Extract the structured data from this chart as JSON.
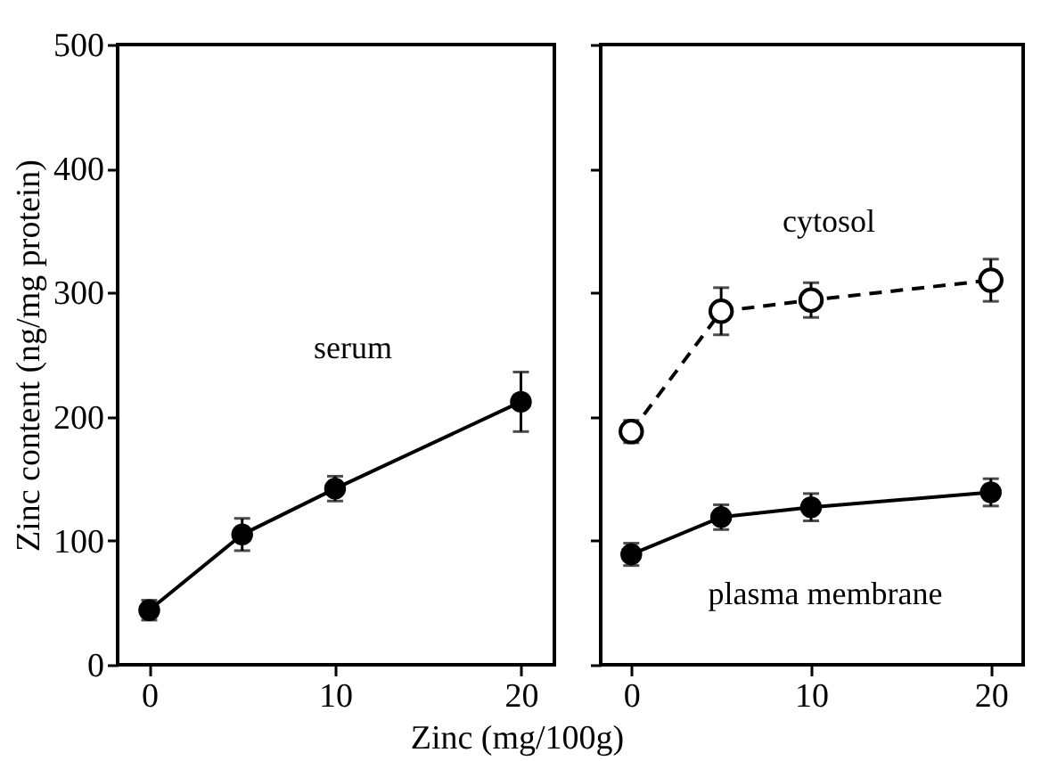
{
  "chart_data": [
    {
      "type": "line",
      "ylabel": "Zinc content (ng/mg protein)",
      "xlabel": "Zinc (mg/100g)",
      "x": [
        0,
        5,
        10,
        20
      ],
      "xlim": [
        -1.7,
        21.8
      ],
      "xticks": [
        0,
        10,
        20
      ],
      "ylim": [
        0,
        500
      ],
      "yticks": [
        0,
        100,
        200,
        300,
        400,
        500
      ],
      "marker": "circle",
      "grid": false,
      "series": [
        {
          "name": "serum",
          "color": "#000000",
          "line_style": "solid",
          "values": [
            44,
            105,
            142,
            212
          ],
          "errors": [
            8,
            13,
            10,
            24
          ]
        }
      ]
    },
    {
      "type": "line",
      "x": [
        0,
        5,
        10,
        20
      ],
      "xlim": [
        -1.7,
        21.8
      ],
      "xticks": [
        0,
        10,
        20
      ],
      "ylim": [
        0,
        500
      ],
      "yticks": [
        0,
        100,
        200,
        300,
        400,
        500
      ],
      "tick_labels": "x",
      "marker": "circle",
      "grid": false,
      "series": [
        {
          "name": "cytosol",
          "color": "#000000",
          "line_style": "dashed",
          "values": [
            188,
            285,
            294,
            310
          ],
          "errors": [
            9,
            19,
            14,
            17
          ]
        },
        {
          "name": "plasma membrane",
          "color": "#000000",
          "line_style": "solid",
          "values": [
            89,
            119,
            127,
            139
          ],
          "errors": [
            9,
            10,
            11,
            11
          ]
        }
      ]
    }
  ]
}
